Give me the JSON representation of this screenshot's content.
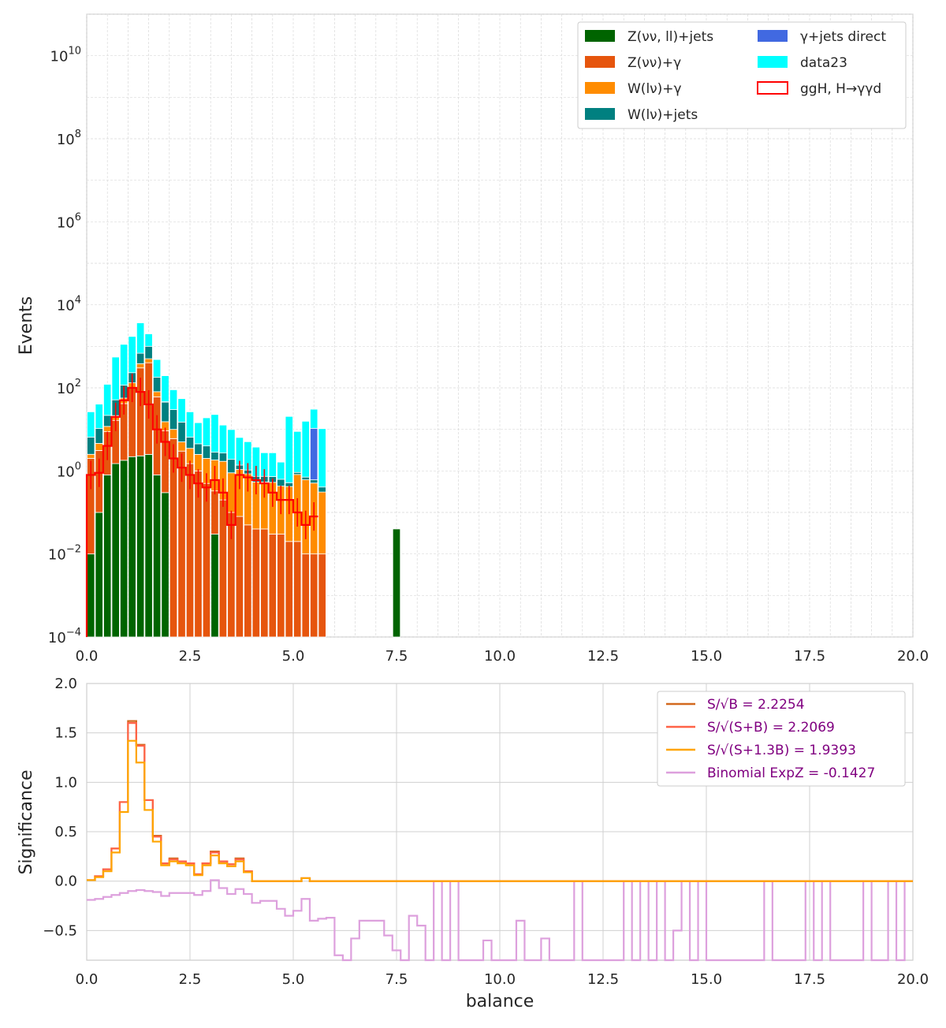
{
  "chart_data": [
    {
      "type": "bar",
      "stacked": true,
      "title": "",
      "xlabel": "",
      "ylabel": "Events",
      "xlim": [
        0,
        20
      ],
      "ylim": [
        0.0001,
        100000000000
      ],
      "log_y": true,
      "grid": true,
      "legend_position": "top-right",
      "x_ticks": [
        0,
        2.5,
        5,
        7.5,
        10,
        12.5,
        15,
        17.5,
        20
      ],
      "x_tick_labels": [
        "0.0",
        "2.5",
        "5.0",
        "7.5",
        "10.0",
        "12.5",
        "15.0",
        "17.5",
        "20.0"
      ],
      "y_tick_exponents": [
        -4,
        -2,
        0,
        2,
        4,
        6,
        8,
        10
      ],
      "bin_width": 0.2,
      "x_start": 0,
      "series": [
        {
          "name": "Z(νν, ll)+jets",
          "color": "#006400",
          "values": [
            0.01,
            0.1,
            0.8,
            1.5,
            1.8,
            2.2,
            2.3,
            2.5,
            0.8,
            0.3,
            0,
            0,
            0.0001,
            0.0001,
            0,
            0.03,
            0.0001,
            0,
            0.0001,
            0.0001,
            0,
            0,
            0.0001,
            0,
            0,
            0,
            0,
            0,
            0,
            0,
            0,
            0,
            0,
            0,
            0,
            0,
            0,
            0.04
          ]
        },
        {
          "name": "Z(νν)+γ",
          "color": "#E6550D",
          "values": [
            2,
            3,
            8,
            15,
            40,
            100,
            300,
            400,
            60,
            9,
            6,
            3,
            1.5,
            1,
            0.5,
            0.3,
            0.2,
            0.1,
            0.08,
            0.05,
            0.04,
            0.04,
            0.03,
            0.03,
            0.02,
            0.02,
            0.01,
            0.01,
            0.01
          ]
        },
        {
          "name": "W(lν)+γ",
          "color": "#FF8C00",
          "values": [
            0.5,
            1.5,
            3,
            5,
            15,
            30,
            80,
            100,
            20,
            6,
            4,
            2,
            2,
            1.5,
            1.5,
            1.5,
            1.5,
            0.8,
            1,
            0.8,
            0.5,
            0.5,
            0.5,
            0.4,
            0.4,
            0.8,
            0.6,
            0.5,
            0.3
          ]
        },
        {
          "name": "W(lν)+jets",
          "color": "#008080",
          "values": [
            4,
            6,
            10,
            30,
            60,
            100,
            300,
            500,
            100,
            30,
            20,
            10,
            3,
            2,
            2,
            1,
            1,
            1,
            0.3,
            0.2,
            0.2,
            0.2,
            0.2,
            0.2,
            0.1,
            0.1,
            0.1,
            0.1,
            0.1
          ]
        },
        {
          "name": "γ+jets direct",
          "color": "#4169E1",
          "values": [
            0,
            0,
            0,
            0,
            0,
            0,
            0,
            0,
            0,
            1,
            0,
            0,
            0,
            0,
            0,
            0,
            0,
            0,
            0,
            0,
            0,
            0,
            0,
            0,
            0,
            0,
            0,
            10
          ]
        },
        {
          "name": "data23",
          "color": "#00FFFF",
          "values": [
            20,
            30,
            100,
            500,
            1000,
            1500,
            3000,
            1000,
            300,
            150,
            60,
            40,
            20,
            10,
            15,
            20,
            10,
            8,
            5,
            4,
            3,
            2,
            2,
            1,
            20,
            8,
            15,
            20,
            10
          ]
        },
        {
          "name": "ggH, H→γγd",
          "color": "#FF0000",
          "style": "step",
          "values": [
            0.8,
            0.9,
            4,
            20,
            50,
            100,
            80,
            40,
            10,
            5,
            2,
            1.2,
            0.8,
            0.5,
            0.4,
            0.6,
            0.3,
            0.05,
            0.8,
            0.7,
            0.6,
            0.5,
            0.3,
            0.2,
            0.2,
            0.1,
            0.05,
            0.08
          ]
        }
      ]
    },
    {
      "type": "line",
      "step": true,
      "title": "",
      "xlabel": "balance",
      "ylabel": "Significance",
      "xlim": [
        0,
        20
      ],
      "ylim": [
        -0.8,
        2.0
      ],
      "grid": true,
      "legend_position": "top-right",
      "x_ticks": [
        0,
        2.5,
        5,
        7.5,
        10,
        12.5,
        15,
        17.5,
        20
      ],
      "x_tick_labels": [
        "0.0",
        "2.5",
        "5.0",
        "7.5",
        "10.0",
        "12.5",
        "15.0",
        "17.5",
        "20.0"
      ],
      "y_ticks": [
        -0.5,
        0.0,
        0.5,
        1.0,
        1.5,
        2.0
      ],
      "y_tick_labels": [
        "−0.5",
        "0.0",
        "0.5",
        "1.0",
        "1.5",
        "2.0"
      ],
      "x": [
        0.1,
        0.3,
        0.5,
        0.7,
        0.9,
        1.1,
        1.3,
        1.5,
        1.7,
        1.9,
        2.1,
        2.3,
        2.5,
        2.7,
        2.9,
        3.1,
        3.3,
        3.5,
        3.7,
        3.9,
        4.1,
        4.3,
        4.5,
        4.7,
        4.9,
        5.1,
        5.3,
        5.5,
        5.7,
        5.9,
        6.1,
        6.3,
        6.5,
        6.7,
        6.9,
        7.1,
        7.3,
        7.5,
        7.7,
        7.9,
        8.1,
        8.3,
        8.5,
        8.7,
        8.9,
        9.1,
        9.3,
        9.5,
        9.7,
        9.9,
        10.1,
        10.3,
        10.5,
        10.7,
        10.9,
        11.1,
        11.3,
        11.5,
        11.7,
        11.9,
        12.1,
        12.3,
        12.5,
        12.7,
        12.9,
        13.1,
        13.3,
        13.5,
        13.7,
        13.9,
        14.1,
        14.3,
        14.5,
        14.7,
        14.9,
        15.1,
        15.3,
        15.5,
        15.7,
        15.9,
        16.1,
        16.3,
        16.5,
        16.7,
        16.9,
        17.1,
        17.3,
        17.5,
        17.7,
        17.9,
        18.1,
        18.3,
        18.5,
        18.7,
        18.9,
        19.1,
        19.3,
        19.5,
        19.7,
        19.9
      ],
      "series": [
        {
          "name": "S/√B = 2.2254",
          "color": "#D2691E",
          "values": [
            0.01,
            0.05,
            0.12,
            0.33,
            0.8,
            1.62,
            1.38,
            0.82,
            0.46,
            0.18,
            0.23,
            0.2,
            0.18,
            0.07,
            0.18,
            0.3,
            0.2,
            0.17,
            0.23,
            0.1,
            0.0,
            0.0,
            0.0,
            0.0,
            0.0,
            0.0,
            0.03,
            0.0,
            0.0,
            0.0,
            0.0,
            0.0,
            0.0,
            0.0,
            0.0,
            0.0,
            0.0,
            0.0,
            0.0,
            0.0,
            0.0,
            0.0,
            0.0,
            0.0,
            0.0,
            0.0,
            0.0,
            0.0,
            0.0,
            0.0,
            0.0,
            0.0,
            0.0,
            0.0,
            0.0,
            0.0,
            0.0,
            0.0,
            0.0,
            0.0,
            0.0,
            0.0,
            0.0,
            0.0,
            0.0,
            0.0,
            0.0,
            0.0,
            0.0,
            0.0,
            0.0,
            0.0,
            0.0,
            0.0,
            0.0,
            0.0,
            0.0,
            0.0,
            0.0,
            0.0,
            0.0,
            0.0,
            0.0,
            0.0,
            0.0,
            0.0,
            0.0,
            0.0,
            0.0,
            0.0,
            0.0,
            0.0,
            0.0,
            0.0,
            0.0,
            0.0,
            0.0,
            0.0,
            0.0,
            0.0
          ]
        },
        {
          "name": "S/√(S+B) = 2.2069",
          "color": "#FF6347",
          "values": [
            0.01,
            0.05,
            0.12,
            0.33,
            0.8,
            1.6,
            1.37,
            0.82,
            0.45,
            0.18,
            0.22,
            0.2,
            0.18,
            0.07,
            0.18,
            0.29,
            0.2,
            0.17,
            0.22,
            0.1,
            0.0,
            0.0,
            0.0,
            0.0,
            0.0,
            0.0,
            0.03,
            0.0,
            0.0,
            0.0,
            0.0,
            0.0,
            0.0,
            0.0,
            0.0,
            0.0,
            0.0,
            0.0,
            0.0,
            0.0,
            0.0,
            0.0,
            0.0,
            0.0,
            0.0,
            0.0,
            0.0,
            0.0,
            0.0,
            0.0,
            0.0,
            0.0,
            0.0,
            0.0,
            0.0,
            0.0,
            0.0,
            0.0,
            0.0,
            0.0,
            0.0,
            0.0,
            0.0,
            0.0,
            0.0,
            0.0,
            0.0,
            0.0,
            0.0,
            0.0,
            0.0,
            0.0,
            0.0,
            0.0,
            0.0,
            0.0,
            0.0,
            0.0,
            0.0,
            0.0,
            0.0,
            0.0,
            0.0,
            0.0,
            0.0,
            0.0,
            0.0,
            0.0,
            0.0,
            0.0,
            0.0,
            0.0,
            0.0,
            0.0,
            0.0,
            0.0,
            0.0,
            0.0,
            0.0,
            0.0
          ]
        },
        {
          "name": "S/√(S+1.3B) = 1.9393",
          "color": "#FFA500",
          "values": [
            0.01,
            0.04,
            0.1,
            0.29,
            0.7,
            1.42,
            1.2,
            0.72,
            0.4,
            0.16,
            0.2,
            0.18,
            0.16,
            0.06,
            0.16,
            0.26,
            0.18,
            0.15,
            0.2,
            0.09,
            0.0,
            0.0,
            0.0,
            0.0,
            0.0,
            0.0,
            0.03,
            0.0,
            0.0,
            0.0,
            0.0,
            0.0,
            0.0,
            0.0,
            0.0,
            0.0,
            0.0,
            0.0,
            0.0,
            0.0,
            0.0,
            0.0,
            0.0,
            0.0,
            0.0,
            0.0,
            0.0,
            0.0,
            0.0,
            0.0,
            0.0,
            0.0,
            0.0,
            0.0,
            0.0,
            0.0,
            0.0,
            0.0,
            0.0,
            0.0,
            0.0,
            0.0,
            0.0,
            0.0,
            0.0,
            0.0,
            0.0,
            0.0,
            0.0,
            0.0,
            0.0,
            0.0,
            0.0,
            0.0,
            0.0,
            0.0,
            0.0,
            0.0,
            0.0,
            0.0,
            0.0,
            0.0,
            0.0,
            0.0,
            0.0,
            0.0,
            0.0,
            0.0,
            0.0,
            0.0,
            0.0,
            0.0,
            0.0,
            0.0,
            0.0,
            0.0,
            0.0,
            0.0,
            0.0,
            0.0
          ]
        },
        {
          "name": "Binomial ExpZ = -0.1427",
          "color": "#DDA0DD",
          "values": [
            -0.19,
            -0.18,
            -0.16,
            -0.14,
            -0.12,
            -0.1,
            -0.09,
            -0.1,
            -0.11,
            -0.15,
            -0.12,
            -0.12,
            -0.12,
            -0.14,
            -0.1,
            0.01,
            -0.07,
            -0.13,
            -0.08,
            -0.13,
            -0.22,
            -0.2,
            -0.2,
            -0.28,
            -0.35,
            -0.3,
            -0.18,
            -0.4,
            -0.38,
            -0.37,
            -0.75,
            -0.8,
            -0.58,
            -0.4,
            -0.4,
            -0.4,
            -0.55,
            -0.7,
            -0.8,
            -0.35,
            -0.45,
            -0.8,
            0.0,
            -0.8,
            0.0,
            -0.8,
            -0.8,
            -0.8,
            -0.6,
            -0.8,
            -0.8,
            -0.8,
            -0.4,
            -0.8,
            -0.8,
            -0.58,
            -0.8,
            -0.8,
            -0.8,
            0.0,
            -0.8,
            -0.8,
            -0.8,
            -0.8,
            -0.8,
            0.0,
            -0.8,
            0.0,
            -0.8,
            0.0,
            -0.8,
            -0.5,
            0.0,
            -0.8,
            0.0,
            -0.8,
            -0.8,
            -0.8,
            -0.8,
            -0.8,
            -0.8,
            -0.8,
            0.0,
            -0.8,
            -0.8,
            -0.8,
            -0.8,
            0.0,
            -0.8,
            0.0,
            -0.8,
            -0.8,
            -0.8,
            -0.8,
            0.0,
            -0.8,
            -0.8,
            0.0,
            -0.8,
            0.0
          ]
        }
      ]
    }
  ]
}
